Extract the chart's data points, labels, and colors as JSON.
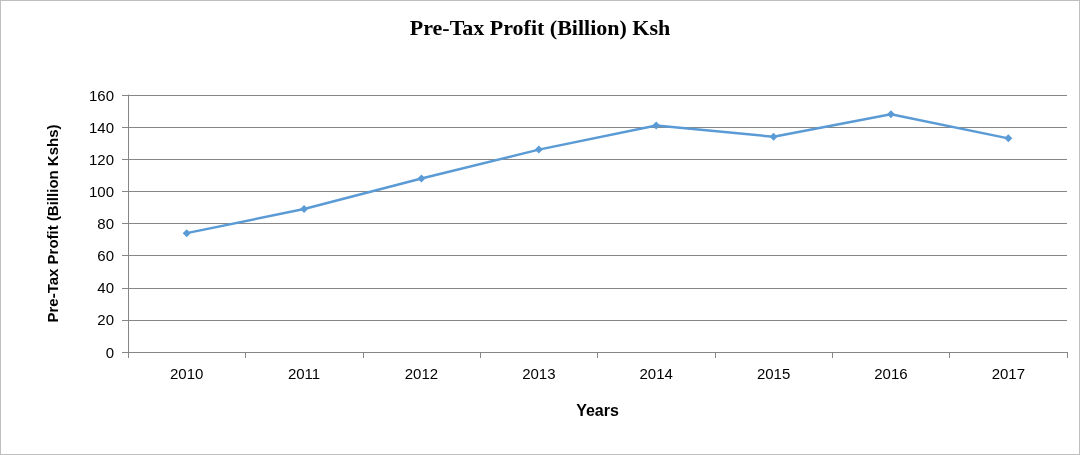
{
  "chart_data": {
    "type": "line",
    "title": "Pre-Tax Profit (Billion) Ksh",
    "xlabel": "Years",
    "ylabel": "Pre-Tax Profit (Billion Kshs)",
    "categories": [
      "2010",
      "2011",
      "2012",
      "2013",
      "2014",
      "2015",
      "2016",
      "2017"
    ],
    "series": [
      {
        "color": "#5b9bd5",
        "values": [
          74,
          89,
          108,
          126,
          141,
          134,
          148,
          133
        ]
      }
    ],
    "ylim": [
      0,
      160
    ],
    "yticks": [
      0,
      20,
      40,
      60,
      80,
      100,
      120,
      140,
      160
    ],
    "grid": "y",
    "marker": "diamond",
    "line_style": "solid"
  }
}
